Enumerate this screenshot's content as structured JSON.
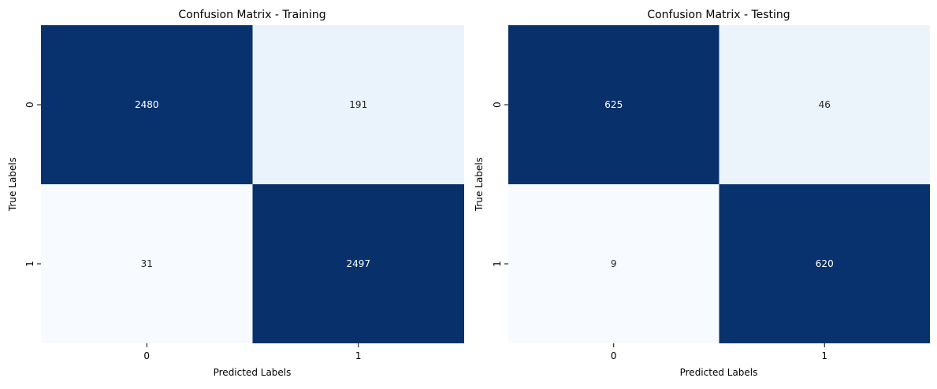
{
  "chart_data": [
    {
      "type": "heatmap",
      "title": "Confusion Matrix - Training",
      "xlabel": "Predicted Labels",
      "ylabel": "True Labels",
      "x_categories": [
        "0",
        "1"
      ],
      "y_categories": [
        "0",
        "1"
      ],
      "values": [
        [
          2480,
          191
        ],
        [
          31,
          2497
        ]
      ],
      "cell_labels": [
        [
          "2480",
          "191"
        ],
        [
          "31",
          "2497"
        ]
      ],
      "colormap": "Blues",
      "colorbar": false
    },
    {
      "type": "heatmap",
      "title": "Confusion Matrix - Testing",
      "xlabel": "Predicted Labels",
      "ylabel": "True Labels",
      "x_categories": [
        "0",
        "1"
      ],
      "y_categories": [
        "0",
        "1"
      ],
      "values": [
        [
          625,
          46
        ],
        [
          9,
          620
        ]
      ],
      "cell_labels": [
        [
          "625",
          "46"
        ],
        [
          "9",
          "620"
        ]
      ],
      "colormap": "Blues",
      "colorbar": false
    }
  ],
  "colors": {
    "dark_cell": "#08306b",
    "light_cell_low": "#f7fbff",
    "light_cell_mid": "#eaf2fb",
    "dark_text": "#ffffff",
    "light_text": "#262626"
  }
}
